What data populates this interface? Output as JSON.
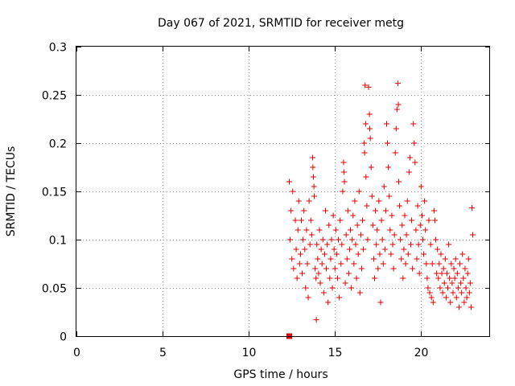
{
  "chart_data": {
    "type": "scatter",
    "title": "Day 067 of 2021, SRMTID for receiver metg",
    "xlabel": "GPS time / hours",
    "ylabel": "SRMTID / TECUs",
    "xlim": [
      0,
      24
    ],
    "ylim": [
      0,
      0.3
    ],
    "xticks": [
      0,
      5,
      10,
      15,
      20
    ],
    "yticks": [
      0,
      0.05,
      0.1,
      0.15,
      0.2,
      0.25,
      0.3
    ],
    "xtick_labels": [
      "0",
      "5",
      "10",
      "15",
      "20"
    ],
    "ytick_labels": [
      "0",
      "0.05",
      "0.1",
      "0.15",
      "0.2",
      "0.25",
      "0.3"
    ],
    "grid": true,
    "marker_color": "#e00000",
    "series": [
      {
        "name": "SRMTID (plus markers)",
        "marker": "plus",
        "points": [
          [
            12.35,
            0.16
          ],
          [
            12.4,
            0.1
          ],
          [
            12.45,
            0.13
          ],
          [
            12.5,
            0.08
          ],
          [
            12.55,
            0.15
          ],
          [
            12.6,
            0.07
          ],
          [
            12.7,
            0.12
          ],
          [
            12.75,
            0.09
          ],
          [
            12.8,
            0.06
          ],
          [
            12.85,
            0.11
          ],
          [
            12.9,
            0.14
          ],
          [
            12.95,
            0.075
          ],
          [
            13.0,
            0.085
          ],
          [
            13.05,
            0.12
          ],
          [
            13.1,
            0.065
          ],
          [
            13.15,
            0.1
          ],
          [
            13.2,
            0.13
          ],
          [
            13.25,
            0.09
          ],
          [
            13.3,
            0.05
          ],
          [
            13.35,
            0.11
          ],
          [
            13.4,
            0.075
          ],
          [
            13.45,
            0.04
          ],
          [
            13.5,
            0.14
          ],
          [
            13.55,
            0.095
          ],
          [
            13.6,
            0.12
          ],
          [
            13.65,
            0.105
          ],
          [
            13.7,
            0.185
          ],
          [
            13.72,
            0.175
          ],
          [
            13.75,
            0.165
          ],
          [
            13.78,
            0.155
          ],
          [
            13.8,
            0.145
          ],
          [
            13.85,
            0.07
          ],
          [
            13.9,
            0.06
          ],
          [
            13.92,
            0.017
          ],
          [
            13.95,
            0.095
          ],
          [
            14.0,
            0.08
          ],
          [
            14.05,
            0.065
          ],
          [
            14.1,
            0.11
          ],
          [
            14.15,
            0.055
          ],
          [
            14.2,
            0.09
          ],
          [
            14.25,
            0.075
          ],
          [
            14.3,
            0.1
          ],
          [
            14.35,
            0.045
          ],
          [
            14.4,
            0.085
          ],
          [
            14.45,
            0.13
          ],
          [
            14.5,
            0.07
          ],
          [
            14.55,
            0.095
          ],
          [
            14.6,
            0.035
          ],
          [
            14.65,
            0.115
          ],
          [
            14.7,
            0.06
          ],
          [
            14.75,
            0.08
          ],
          [
            14.8,
            0.1
          ],
          [
            14.85,
            0.05
          ],
          [
            14.9,
            0.125
          ],
          [
            14.95,
            0.09
          ],
          [
            15.0,
            0.07
          ],
          [
            15.05,
            0.11
          ],
          [
            15.1,
            0.085
          ],
          [
            15.15,
            0.06
          ],
          [
            15.2,
            0.1
          ],
          [
            15.25,
            0.04
          ],
          [
            15.3,
            0.12
          ],
          [
            15.35,
            0.075
          ],
          [
            15.4,
            0.095
          ],
          [
            15.45,
            0.15
          ],
          [
            15.5,
            0.18
          ],
          [
            15.52,
            0.17
          ],
          [
            15.55,
            0.16
          ],
          [
            15.6,
            0.055
          ],
          [
            15.65,
            0.105
          ],
          [
            15.7,
            0.08
          ],
          [
            15.75,
            0.13
          ],
          [
            15.8,
            0.065
          ],
          [
            15.85,
            0.09
          ],
          [
            15.9,
            0.11
          ],
          [
            15.95,
            0.05
          ],
          [
            16.0,
            0.1
          ],
          [
            16.05,
            0.125
          ],
          [
            16.1,
            0.075
          ],
          [
            16.15,
            0.14
          ],
          [
            16.2,
            0.095
          ],
          [
            16.25,
            0.06
          ],
          [
            16.3,
            0.115
          ],
          [
            16.35,
            0.085
          ],
          [
            16.4,
            0.15
          ],
          [
            16.45,
            0.045
          ],
          [
            16.5,
            0.105
          ],
          [
            16.55,
            0.07
          ],
          [
            16.6,
            0.12
          ],
          [
            16.65,
            0.09
          ],
          [
            16.7,
            0.2
          ],
          [
            16.72,
            0.19
          ],
          [
            16.75,
            0.26
          ],
          [
            16.78,
            0.22
          ],
          [
            16.8,
            0.165
          ],
          [
            16.85,
            0.135
          ],
          [
            16.9,
            0.1
          ],
          [
            16.95,
            0.258
          ],
          [
            17.0,
            0.23
          ],
          [
            17.02,
            0.215
          ],
          [
            17.05,
            0.205
          ],
          [
            17.1,
            0.175
          ],
          [
            17.15,
            0.145
          ],
          [
            17.2,
            0.115
          ],
          [
            17.25,
            0.08
          ],
          [
            17.3,
            0.06
          ],
          [
            17.35,
            0.13
          ],
          [
            17.4,
            0.095
          ],
          [
            17.45,
            0.11
          ],
          [
            17.5,
            0.07
          ],
          [
            17.55,
            0.14
          ],
          [
            17.6,
            0.085
          ],
          [
            17.65,
            0.035
          ],
          [
            17.7,
            0.12
          ],
          [
            17.75,
            0.1
          ],
          [
            17.8,
            0.075
          ],
          [
            17.85,
            0.155
          ],
          [
            17.9,
            0.09
          ],
          [
            17.95,
            0.13
          ],
          [
            18.0,
            0.22
          ],
          [
            18.05,
            0.2
          ],
          [
            18.1,
            0.175
          ],
          [
            18.15,
            0.145
          ],
          [
            18.2,
            0.11
          ],
          [
            18.25,
            0.085
          ],
          [
            18.3,
            0.125
          ],
          [
            18.35,
            0.095
          ],
          [
            18.4,
            0.07
          ],
          [
            18.45,
            0.105
          ],
          [
            18.5,
            0.19
          ],
          [
            18.55,
            0.215
          ],
          [
            18.6,
            0.235
          ],
          [
            18.65,
            0.262
          ],
          [
            18.68,
            0.24
          ],
          [
            18.7,
            0.16
          ],
          [
            18.75,
            0.135
          ],
          [
            18.8,
            0.1
          ],
          [
            18.85,
            0.08
          ],
          [
            18.9,
            0.115
          ],
          [
            18.95,
            0.06
          ],
          [
            19.0,
            0.09
          ],
          [
            19.05,
            0.125
          ],
          [
            19.1,
            0.075
          ],
          [
            19.15,
            0.105
          ],
          [
            19.2,
            0.14
          ],
          [
            19.25,
            0.085
          ],
          [
            19.3,
            0.17
          ],
          [
            19.35,
            0.185
          ],
          [
            19.4,
            0.095
          ],
          [
            19.45,
            0.12
          ],
          [
            19.5,
            0.07
          ],
          [
            19.55,
            0.22
          ],
          [
            19.6,
            0.2
          ],
          [
            19.65,
            0.18
          ],
          [
            19.7,
            0.11
          ],
          [
            19.75,
            0.08
          ],
          [
            19.8,
            0.135
          ],
          [
            19.85,
            0.095
          ],
          [
            19.9,
            0.065
          ],
          [
            19.95,
            0.115
          ],
          [
            20.0,
            0.155
          ],
          [
            20.05,
            0.125
          ],
          [
            20.1,
            0.1
          ],
          [
            20.15,
            0.085
          ],
          [
            20.2,
            0.14
          ],
          [
            20.25,
            0.11
          ],
          [
            20.3,
            0.075
          ],
          [
            20.35,
            0.06
          ],
          [
            20.4,
            0.05
          ],
          [
            20.45,
            0.12
          ],
          [
            20.5,
            0.045
          ],
          [
            20.55,
            0.095
          ],
          [
            20.6,
            0.04
          ],
          [
            20.65,
            0.075
          ],
          [
            20.7,
            0.035
          ],
          [
            20.75,
            0.13
          ],
          [
            20.8,
            0.12
          ],
          [
            20.85,
            0.1
          ],
          [
            20.9,
            0.065
          ],
          [
            20.95,
            0.09
          ],
          [
            21.0,
            0.06
          ],
          [
            21.05,
            0.075
          ],
          [
            21.1,
            0.05
          ],
          [
            21.15,
            0.085
          ],
          [
            21.2,
            0.065
          ],
          [
            21.25,
            0.045
          ],
          [
            21.3,
            0.07
          ],
          [
            21.35,
            0.055
          ],
          [
            21.4,
            0.08
          ],
          [
            21.45,
            0.04
          ],
          [
            21.5,
            0.065
          ],
          [
            21.55,
            0.05
          ],
          [
            21.6,
            0.095
          ],
          [
            21.65,
            0.06
          ],
          [
            21.7,
            0.035
          ],
          [
            21.75,
            0.075
          ],
          [
            21.8,
            0.055
          ],
          [
            21.85,
            0.045
          ],
          [
            21.9,
            0.07
          ],
          [
            21.95,
            0.06
          ],
          [
            22.0,
            0.08
          ],
          [
            22.05,
            0.04
          ],
          [
            22.1,
            0.065
          ],
          [
            22.15,
            0.05
          ],
          [
            22.2,
            0.03
          ],
          [
            22.25,
            0.075
          ],
          [
            22.3,
            0.055
          ],
          [
            22.35,
            0.045
          ],
          [
            22.4,
            0.085
          ],
          [
            22.45,
            0.06
          ],
          [
            22.5,
            0.035
          ],
          [
            22.55,
            0.07
          ],
          [
            22.6,
            0.05
          ],
          [
            22.65,
            0.04
          ],
          [
            22.7,
            0.065
          ],
          [
            22.75,
            0.08
          ],
          [
            22.8,
            0.045
          ],
          [
            22.85,
            0.055
          ],
          [
            22.9,
            0.03
          ],
          [
            22.95,
            0.133
          ],
          [
            23.0,
            0.105
          ]
        ]
      },
      {
        "name": "filled square marker",
        "marker": "square",
        "points": [
          [
            12.35,
            0.0
          ]
        ]
      }
    ]
  }
}
